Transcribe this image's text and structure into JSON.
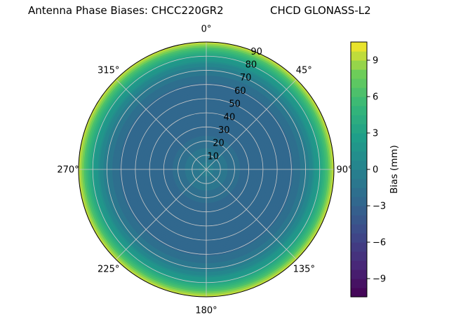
{
  "chart_data": {
    "type": "heatmap",
    "projection": "polar",
    "title": "Antenna Phase Biases: CHCC220GR2      CHCD GLONASS-L2",
    "title_parts": [
      "Antenna Phase Biases: CHCC220GR2",
      "CHCD GLONASS-L2"
    ],
    "theta_ticks_deg": [
      0,
      45,
      90,
      135,
      180,
      225,
      270,
      315
    ],
    "theta_tick_labels": [
      "0°",
      "45°",
      "90°",
      "135°",
      "180°",
      "225°",
      "270°",
      "315°"
    ],
    "r_ticks": [
      10,
      20,
      30,
      40,
      50,
      60,
      70,
      80,
      90
    ],
    "r_tick_labels": [
      "10",
      "20",
      "30",
      "40",
      "50",
      "60",
      "70",
      "80",
      "90"
    ],
    "r_max": 90,
    "r_label_angle_deg": 22.5,
    "grid": true,
    "grid_color": "#c9c9c9",
    "level_step": 0.75,
    "bias_profile": {
      "zenith_deg": [
        0,
        10,
        20,
        30,
        40,
        50,
        60,
        65,
        70,
        75,
        80,
        85,
        90
      ],
      "bias_mm": [
        -0.5,
        -1.0,
        -2.0,
        -2.7,
        -3.0,
        -3.0,
        -2.4,
        -1.8,
        -0.9,
        0.7,
        3.0,
        6.0,
        10.0
      ]
    },
    "colormap": {
      "name": "viridis",
      "anchors": [
        [
          0.0,
          "#440154"
        ],
        [
          0.125,
          "#482878"
        ],
        [
          0.25,
          "#3e4a89"
        ],
        [
          0.375,
          "#31688e"
        ],
        [
          0.5,
          "#26828e"
        ],
        [
          0.625,
          "#1f9e89"
        ],
        [
          0.75,
          "#35b779"
        ],
        [
          0.875,
          "#6dcd59"
        ],
        [
          1.0,
          "#fde725"
        ]
      ]
    },
    "colorbar": {
      "label": "Bias (mm)",
      "ticks": [
        9,
        6,
        3,
        0,
        -3,
        -6,
        -9
      ],
      "tick_labels": [
        "9",
        "6",
        "3",
        "0",
        "−3",
        "−6",
        "−9"
      ],
      "vmin": -10.5,
      "vmax": 10.5
    }
  }
}
